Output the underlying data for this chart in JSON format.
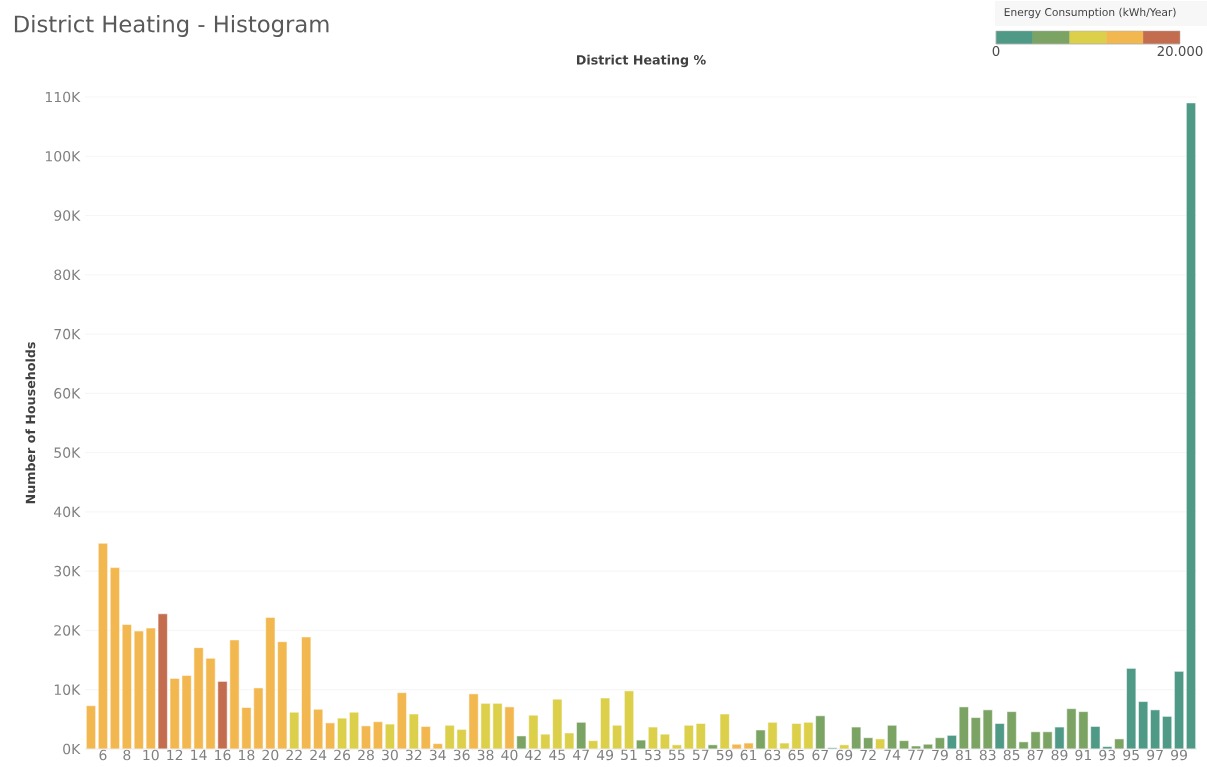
{
  "chart_data": {
    "type": "bar",
    "title": "District Heating - Histogram",
    "xlabel": "District Heating %",
    "ylabel": "Number of Households",
    "categories": [
      null,
      "6",
      null,
      "8",
      null,
      "10",
      null,
      "12",
      null,
      "14",
      null,
      "16",
      null,
      "18",
      null,
      "20",
      null,
      "22",
      null,
      "24",
      null,
      "26",
      null,
      "28",
      null,
      "30",
      null,
      "32",
      null,
      "34",
      null,
      "36",
      null,
      "38",
      null,
      "40",
      null,
      "42",
      null,
      "45",
      null,
      "47",
      null,
      "49",
      null,
      "51",
      null,
      "53",
      null,
      "55",
      null,
      "57",
      null,
      "59",
      null,
      "61",
      null,
      "63",
      null,
      "65",
      null,
      "67",
      null,
      "69",
      null,
      "72",
      null,
      "74",
      null,
      "77",
      null,
      "79",
      null,
      "81",
      null,
      "83",
      null,
      "85",
      null,
      "87",
      null,
      "89",
      null,
      "91",
      null,
      "93",
      null,
      "95",
      null,
      "97",
      null,
      "99",
      null
    ],
    "values": [
      7300,
      34700,
      30600,
      21000,
      19900,
      20400,
      22800,
      11900,
      12400,
      17100,
      15300,
      11400,
      18400,
      7000,
      10300,
      22200,
      18100,
      6200,
      18900,
      6700,
      4400,
      5200,
      6200,
      3900,
      4600,
      4200,
      9500,
      5900,
      3800,
      900,
      4000,
      3300,
      9300,
      7700,
      7700,
      7100,
      2200,
      5700,
      2500,
      8400,
      2700,
      4500,
      1400,
      8600,
      4000,
      9800,
      1500,
      3700,
      2500,
      700,
      4000,
      4300,
      700,
      5900,
      800,
      1000,
      3200,
      4500,
      1000,
      4300,
      4500,
      5600,
      200,
      700,
      3700,
      1900,
      1700,
      4000,
      1400,
      500,
      800,
      1900,
      2300,
      7100,
      5300,
      6600,
      4300,
      6300,
      1200,
      2900,
      2900,
      3700,
      6800,
      6300,
      3800,
      400,
      1700,
      13600,
      8000,
      6600,
      5500,
      13100,
      109000
    ],
    "colors": [
      "#f2b84f",
      "#f2b84f",
      "#f2b84f",
      "#f2b84f",
      "#f2b84f",
      "#f2b84f",
      "#c36c4e",
      "#f2b84f",
      "#f2b84f",
      "#f2b84f",
      "#f2b84f",
      "#c36c4e",
      "#f2b84f",
      "#f2b84f",
      "#f2b84f",
      "#f2b84f",
      "#f2b84f",
      "#dccf4a",
      "#f2b84f",
      "#f2b84f",
      "#f2b84f",
      "#dccf4a",
      "#dccf4a",
      "#f2b84f",
      "#f2b84f",
      "#dccf4a",
      "#f2b84f",
      "#dccf4a",
      "#f2b84f",
      "#f2b84f",
      "#dccf4a",
      "#dccf4a",
      "#f2b84f",
      "#dccf4a",
      "#dccf4a",
      "#f2b84f",
      "#7ba363",
      "#dccf4a",
      "#dccf4a",
      "#dccf4a",
      "#dccf4a",
      "#7ba363",
      "#dccf4a",
      "#dccf4a",
      "#dccf4a",
      "#dccf4a",
      "#7ba363",
      "#dccf4a",
      "#dccf4a",
      "#dccf4a",
      "#dccf4a",
      "#dccf4a",
      "#7ba363",
      "#dccf4a",
      "#f2b84f",
      "#f2b84f",
      "#7ba363",
      "#dccf4a",
      "#dccf4a",
      "#dccf4a",
      "#dccf4a",
      "#7ba363",
      "#4f9a86",
      "#dccf4a",
      "#7ba363",
      "#7ba363",
      "#dccf4a",
      "#7ba363",
      "#7ba363",
      "#7ba363",
      "#7ba363",
      "#7ba363",
      "#4f9a86",
      "#7ba363",
      "#7ba363",
      "#7ba363",
      "#4f9a86",
      "#7ba363",
      "#7ba363",
      "#7ba363",
      "#7ba363",
      "#4f9a86",
      "#7ba363",
      "#7ba363",
      "#4f9a86",
      "#4f9a86",
      "#7ba363",
      "#4f9a86",
      "#4f9a86",
      "#4f9a86",
      "#4f9a86",
      "#4f9a86",
      "#4f9a86"
    ],
    "ylim": [
      0,
      110000
    ],
    "yticks": [
      {
        "value": 0,
        "label": "0K"
      },
      {
        "value": 10000,
        "label": "10K"
      },
      {
        "value": 20000,
        "label": "20K"
      },
      {
        "value": 30000,
        "label": "30K"
      },
      {
        "value": 40000,
        "label": "40K"
      },
      {
        "value": 50000,
        "label": "50K"
      },
      {
        "value": 60000,
        "label": "60K"
      },
      {
        "value": 70000,
        "label": "70K"
      },
      {
        "value": 80000,
        "label": "80K"
      },
      {
        "value": 90000,
        "label": "90K"
      },
      {
        "value": 100000,
        "label": "100K"
      },
      {
        "value": 110000,
        "label": "110K"
      }
    ],
    "grid": "y",
    "clabel": "Energy Consumption (kWh/Year)",
    "clim": [
      0,
      20000
    ],
    "cticks": [
      {
        "value": 0,
        "label": "0"
      },
      {
        "value": 20000,
        "label": "20.000"
      }
    ]
  }
}
